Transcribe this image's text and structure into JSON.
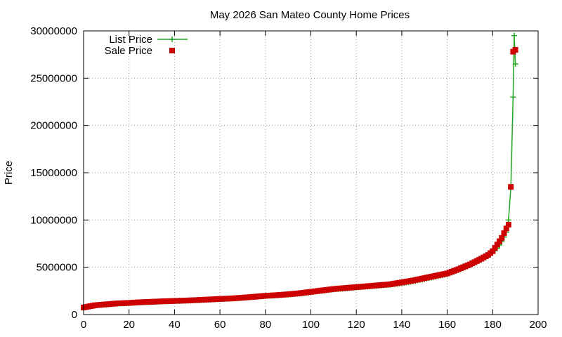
{
  "chart_data": {
    "type": "line",
    "title": "May 2026 San Mateo County Home Prices",
    "xlabel": "",
    "ylabel": "Price",
    "xlim": [
      0,
      200
    ],
    "ylim": [
      0,
      30000000
    ],
    "x_ticks": [
      "0",
      "20",
      "40",
      "60",
      "80",
      "100",
      "120",
      "140",
      "160",
      "180",
      "200"
    ],
    "y_ticks": [
      "0",
      "5000000",
      "10000000",
      "15000000",
      "20000000",
      "25000000",
      "30000000"
    ],
    "grid": true,
    "legend_position": "top-left",
    "series": [
      {
        "name": "List Price",
        "style": "line-and-plus",
        "color": "#22a422",
        "sample_points": [
          [
            0,
            700000
          ],
          [
            5,
            950000
          ],
          [
            10,
            1050000
          ],
          [
            15,
            1150000
          ],
          [
            20,
            1200000
          ],
          [
            25,
            1280000
          ],
          [
            30,
            1320000
          ],
          [
            35,
            1380000
          ],
          [
            40,
            1420000
          ],
          [
            45,
            1450000
          ],
          [
            50,
            1500000
          ],
          [
            55,
            1560000
          ],
          [
            60,
            1620000
          ],
          [
            65,
            1680000
          ],
          [
            70,
            1750000
          ],
          [
            75,
            1850000
          ],
          [
            80,
            1950000
          ],
          [
            85,
            2020000
          ],
          [
            90,
            2100000
          ],
          [
            95,
            2200000
          ],
          [
            100,
            2350000
          ],
          [
            105,
            2500000
          ],
          [
            110,
            2650000
          ],
          [
            115,
            2750000
          ],
          [
            120,
            2850000
          ],
          [
            125,
            2950000
          ],
          [
            130,
            3050000
          ],
          [
            135,
            3150000
          ],
          [
            140,
            3300000
          ],
          [
            145,
            3500000
          ],
          [
            150,
            3750000
          ],
          [
            155,
            4000000
          ],
          [
            160,
            4250000
          ],
          [
            165,
            4700000
          ],
          [
            170,
            5200000
          ],
          [
            175,
            5800000
          ],
          [
            178,
            6300000
          ],
          [
            180,
            6500000
          ],
          [
            182,
            7000000
          ],
          [
            184,
            7700000
          ],
          [
            186,
            8700000
          ],
          [
            187,
            10000000
          ],
          [
            188,
            13500000
          ],
          [
            189,
            23000000
          ],
          [
            189.5,
            29500000
          ],
          [
            190,
            26500000
          ]
        ]
      },
      {
        "name": "Sale Price",
        "style": "points-square",
        "color": "#cc0000",
        "sample_points": [
          [
            0,
            750000
          ],
          [
            5,
            980000
          ],
          [
            10,
            1080000
          ],
          [
            15,
            1180000
          ],
          [
            20,
            1230000
          ],
          [
            25,
            1300000
          ],
          [
            30,
            1350000
          ],
          [
            35,
            1400000
          ],
          [
            40,
            1440000
          ],
          [
            45,
            1480000
          ],
          [
            50,
            1530000
          ],
          [
            55,
            1590000
          ],
          [
            60,
            1650000
          ],
          [
            65,
            1700000
          ],
          [
            70,
            1780000
          ],
          [
            75,
            1880000
          ],
          [
            80,
            1980000
          ],
          [
            85,
            2050000
          ],
          [
            90,
            2140000
          ],
          [
            95,
            2250000
          ],
          [
            100,
            2400000
          ],
          [
            105,
            2550000
          ],
          [
            110,
            2700000
          ],
          [
            115,
            2800000
          ],
          [
            120,
            2900000
          ],
          [
            125,
            3000000
          ],
          [
            130,
            3100000
          ],
          [
            135,
            3200000
          ],
          [
            140,
            3400000
          ],
          [
            145,
            3600000
          ],
          [
            150,
            3850000
          ],
          [
            155,
            4100000
          ],
          [
            160,
            4350000
          ],
          [
            165,
            4800000
          ],
          [
            170,
            5300000
          ],
          [
            175,
            5900000
          ],
          [
            178,
            6300000
          ],
          [
            180,
            6700000
          ],
          [
            182,
            7400000
          ],
          [
            184,
            8100000
          ],
          [
            186,
            9100000
          ],
          [
            187,
            9500000
          ],
          [
            188,
            13500000
          ],
          [
            189,
            27800000
          ],
          [
            190,
            28000000
          ]
        ]
      }
    ]
  }
}
